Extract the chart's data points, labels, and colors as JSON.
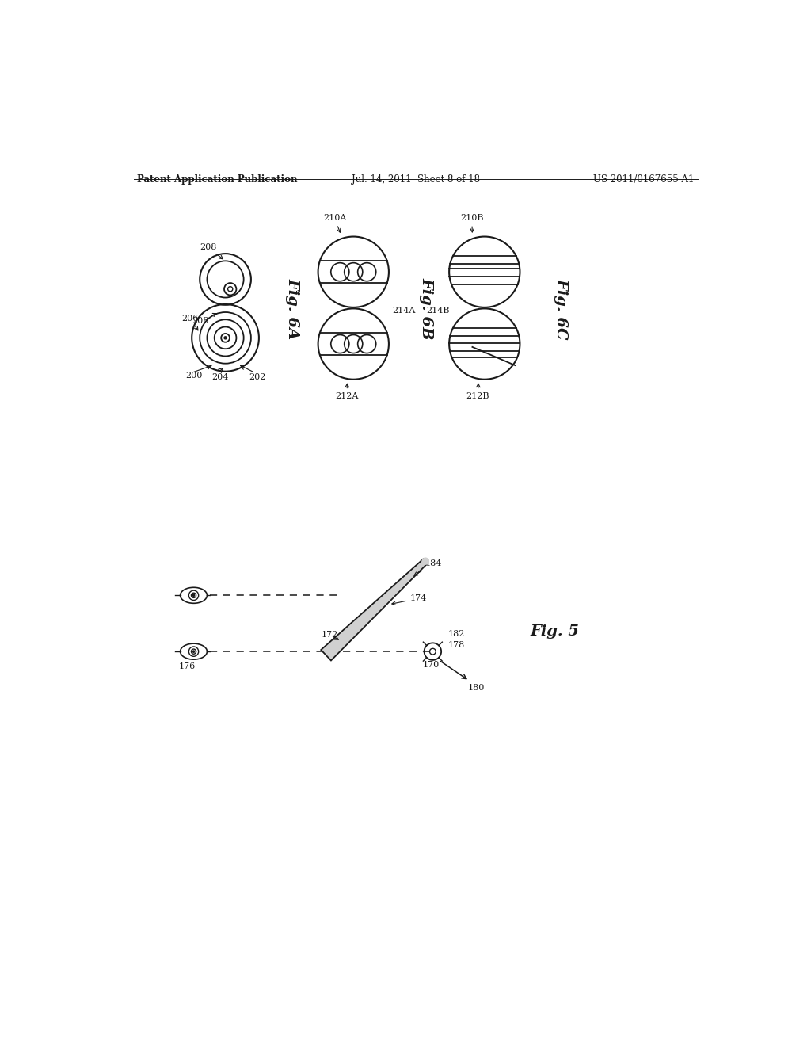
{
  "bg_color": "#ffffff",
  "header_left": "Patent Application Publication",
  "header_center": "Jul. 14, 2011  Sheet 8 of 18",
  "header_right": "US 2011/0167655 A1",
  "fig6A_label": "Fig. 6A",
  "fig6B_label": "Fig. 6B",
  "fig6C_label": "Fig. 6C",
  "fig5_label": "Fig. 5",
  "black": "#1a1a1a"
}
